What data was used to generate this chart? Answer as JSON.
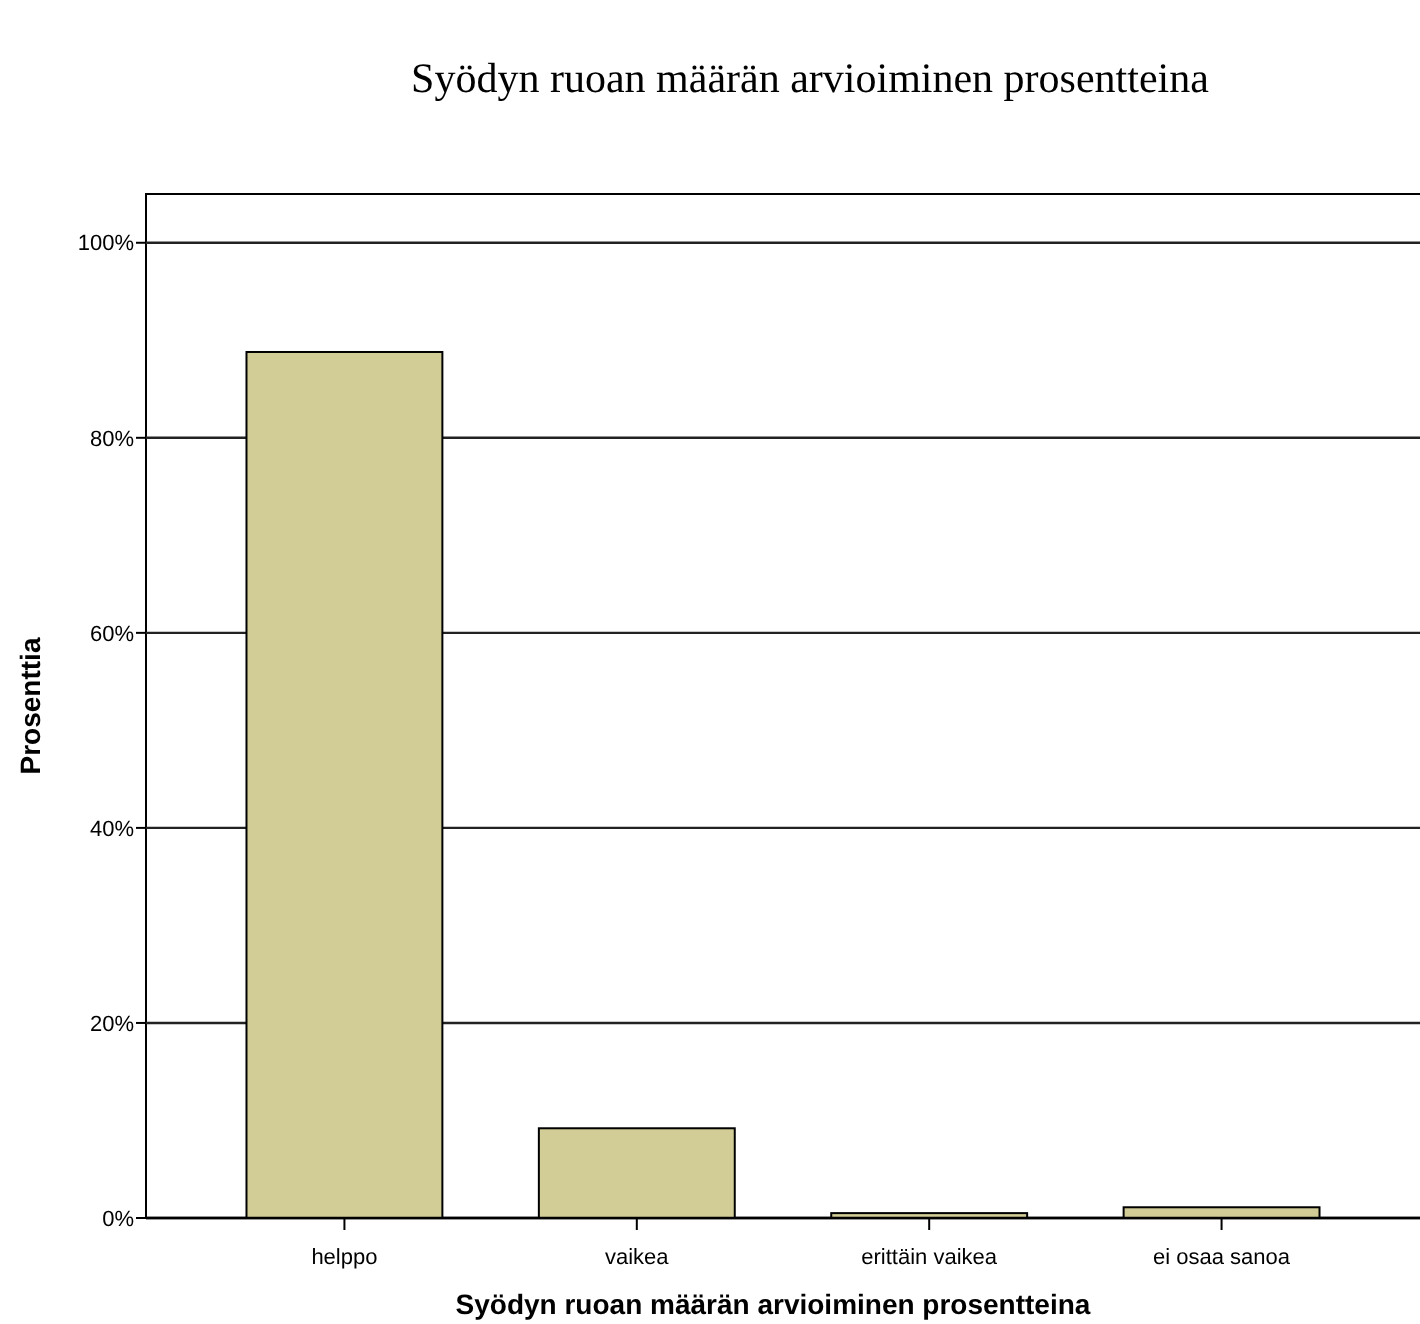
{
  "chart_data": {
    "type": "bar",
    "title": "Syödyn ruoan määrän arvioiminen prosentteina",
    "xlabel": "Syödyn ruoan määrän arvioiminen prosentteina",
    "ylabel": "Prosenttia",
    "categories": [
      "helppo",
      "vaikea",
      "erittäin vaikea",
      "ei osaa sanoa"
    ],
    "values": [
      88.8,
      9.2,
      0.5,
      1.1
    ],
    "color": "#d2cd97",
    "ylim": [
      0,
      105
    ],
    "yticks": [
      {
        "value": 0,
        "label": "0%"
      },
      {
        "value": 20,
        "label": "20%"
      },
      {
        "value": 40,
        "label": "40%"
      },
      {
        "value": 60,
        "label": "60%"
      },
      {
        "value": 80,
        "label": "80%"
      },
      {
        "value": 100,
        "label": "100%"
      }
    ],
    "grid": "y"
  }
}
